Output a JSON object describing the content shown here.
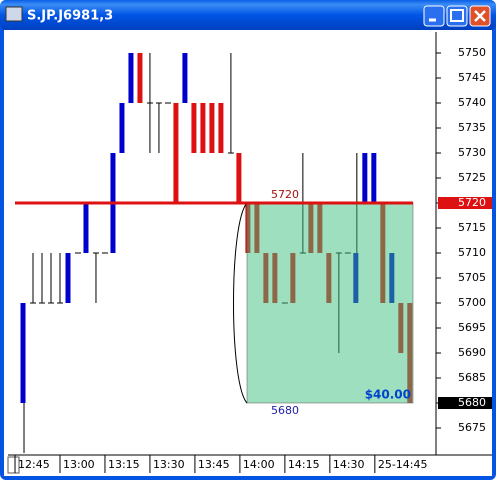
{
  "window": {
    "title": "S.JP.J6981,3"
  },
  "chart_data": {
    "type": "candlestick",
    "categories": [
      null,
      null,
      null,
      null,
      null,
      null,
      null,
      null,
      null,
      null,
      null,
      null,
      null,
      null,
      null,
      null,
      null,
      null,
      null,
      null,
      null,
      null,
      null,
      null,
      null,
      null,
      null,
      null,
      null,
      null,
      null,
      null,
      null,
      null,
      null,
      null,
      null,
      null,
      null,
      null,
      null,
      null,
      null,
      null
    ],
    "open": [
      5680,
      5700,
      5700,
      5700,
      5700,
      5700,
      5710,
      5710,
      5710,
      5710,
      5710,
      5730,
      5740,
      5750,
      5740,
      5740,
      5740,
      5740,
      5740,
      5740,
      5740,
      5740,
      5740,
      5730,
      5730,
      5720,
      5720,
      5710,
      5710,
      5700,
      5710,
      5710,
      5720,
      5720,
      5710,
      5710,
      5710,
      5700,
      5720,
      5720,
      5720,
      5700,
      5700,
      5700
    ],
    "high": [
      5700,
      5710,
      5710,
      5710,
      5710,
      5710,
      5710,
      5720,
      5710,
      5710,
      5730,
      5740,
      5750,
      5750,
      5750,
      5740,
      5740,
      5740,
      5750,
      5740,
      5740,
      5740,
      5740,
      5750,
      5730,
      5720,
      5720,
      5710,
      5710,
      5700,
      5710,
      5730,
      5720,
      5720,
      5710,
      5710,
      5710,
      5730,
      5730,
      5730,
      5720,
      5710,
      5700,
      5700
    ],
    "low": [
      5670,
      5700,
      5700,
      5700,
      5700,
      5700,
      5710,
      5710,
      5700,
      5710,
      5710,
      5730,
      5740,
      5740,
      5730,
      5730,
      5740,
      5720,
      5740,
      5730,
      5730,
      5730,
      5730,
      5730,
      5720,
      5710,
      5710,
      5700,
      5700,
      5700,
      5700,
      5710,
      5710,
      5710,
      5700,
      5690,
      5710,
      5700,
      5720,
      5720,
      5700,
      5700,
      5690,
      5680
    ],
    "close": [
      5700,
      5700,
      5700,
      5700,
      5700,
      5710,
      5710,
      5720,
      5710,
      5710,
      5730,
      5740,
      5750,
      5740,
      5740,
      5740,
      5740,
      5720,
      5750,
      5730,
      5730,
      5730,
      5730,
      5730,
      5720,
      5710,
      5710,
      5700,
      5700,
      5700,
      5700,
      5710,
      5710,
      5710,
      5700,
      5710,
      5710,
      5710,
      5730,
      5730,
      5700,
      5710,
      5690,
      5680
    ],
    "up_color": "#0000cc",
    "down_color": "#dd1111",
    "ylim": [
      5669.6,
      5754.2
    ],
    "yticks": [
      5675,
      5680,
      5685,
      5690,
      5695,
      5700,
      5705,
      5710,
      5715,
      5720,
      5725,
      5730,
      5735,
      5740,
      5745,
      5750
    ],
    "xlim": [
      -1.78,
      45.8
    ],
    "xticks": [
      {
        "value": -1,
        "label": "12:45"
      },
      {
        "value": 4,
        "label": "13:00"
      },
      {
        "value": 9,
        "label": "13:15"
      },
      {
        "value": 14,
        "label": "13:30"
      },
      {
        "value": 19,
        "label": "13:45"
      },
      {
        "value": 24,
        "label": "14:00"
      },
      {
        "value": 29,
        "label": "14:15"
      },
      {
        "value": 34,
        "label": "14:30"
      },
      {
        "value": 39,
        "label": "25-14:45"
      }
    ],
    "hline": {
      "value": 5720,
      "color": "#dd1111"
    },
    "zone": {
      "top": 5720,
      "bottom": 5680,
      "label": "$40.00",
      "color": "#3cc080"
    }
  }
}
